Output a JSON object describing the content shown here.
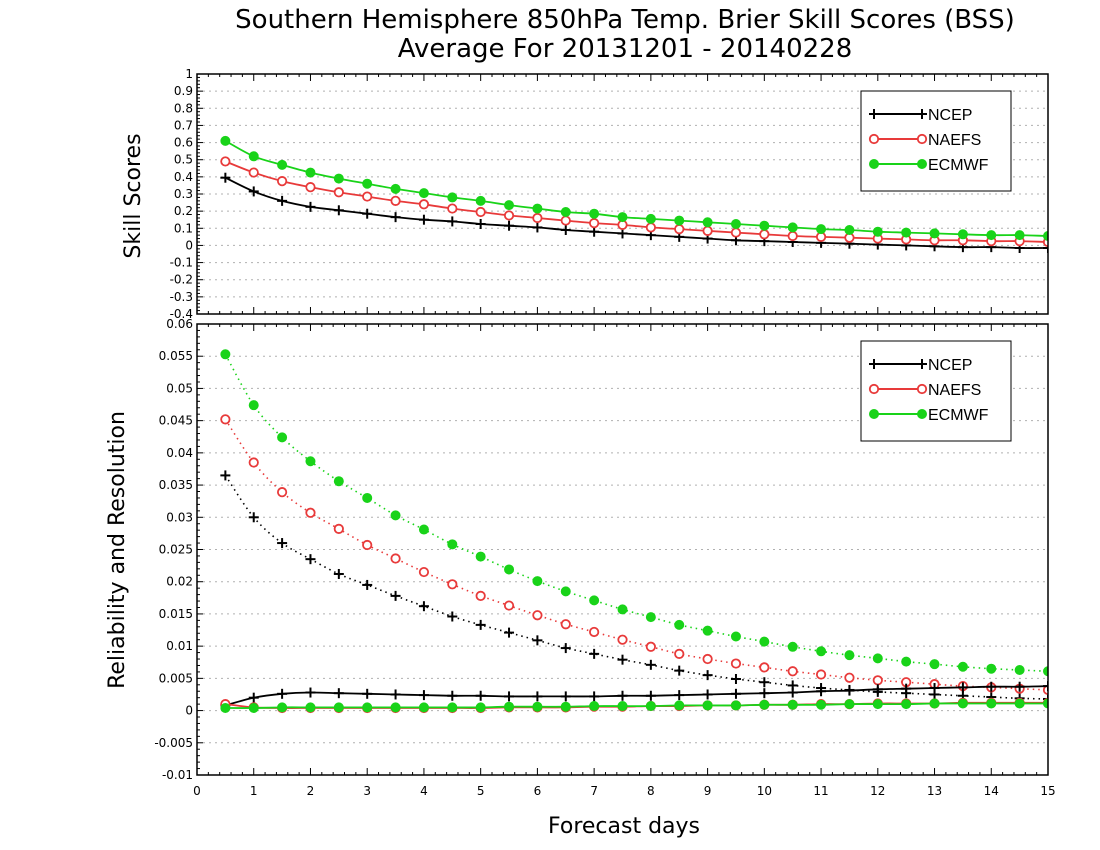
{
  "chart_data": {
    "type": "line",
    "title": "Southern Hemisphere 850hPa Temp. Brier Skill Scores (BSS)",
    "subtitle": "Average For 20131201 - 20140228",
    "xlabel": "Forecast days",
    "xlim": [
      0,
      15
    ],
    "x_ticks": [
      "0",
      "1",
      "2",
      "3",
      "4",
      "5",
      "6",
      "7",
      "8",
      "9",
      "10",
      "11",
      "12",
      "13",
      "14",
      "15"
    ],
    "x": [
      0.5,
      1,
      1.5,
      2,
      2.5,
      3,
      3.5,
      4,
      4.5,
      5,
      5.5,
      6,
      6.5,
      7,
      7.5,
      8,
      8.5,
      9,
      9.5,
      10,
      10.5,
      11,
      11.5,
      12,
      12.5,
      13,
      13.5,
      14,
      14.5,
      15
    ],
    "colors": {
      "NCEP": "#000000",
      "NAEFS": "#e83a3a",
      "ECMWF": "#19d319",
      "grid": "#b0b0b0"
    },
    "panels": [
      {
        "ylabel": "Skill Scores",
        "ylim": [
          -0.4,
          1
        ],
        "y_ticks": [
          "-0.4",
          "-0.3",
          "-0.2",
          "-0.1",
          "0",
          "0.1",
          "0.2",
          "0.3",
          "0.4",
          "0.5",
          "0.6",
          "0.7",
          "0.8",
          "0.9",
          "1"
        ],
        "grid": "horizontal dotted",
        "legend": {
          "position": "top-right",
          "entries": [
            "NCEP",
            "NAEFS",
            "ECMWF"
          ]
        },
        "series": [
          {
            "name": "NCEP",
            "marker": "plus",
            "line": "solid",
            "values": [
              0.395,
              0.315,
              0.26,
              0.225,
              0.205,
              0.185,
              0.165,
              0.15,
              0.14,
              0.125,
              0.115,
              0.105,
              0.09,
              0.08,
              0.07,
              0.06,
              0.05,
              0.04,
              0.03,
              0.025,
              0.02,
              0.015,
              0.01,
              0.005,
              0.0,
              -0.005,
              -0.01,
              -0.01,
              -0.015,
              -0.015
            ]
          },
          {
            "name": "NAEFS",
            "marker": "open-circle",
            "line": "solid",
            "values": [
              0.49,
              0.425,
              0.375,
              0.34,
              0.31,
              0.285,
              0.26,
              0.24,
              0.215,
              0.195,
              0.175,
              0.16,
              0.145,
              0.13,
              0.12,
              0.105,
              0.095,
              0.085,
              0.075,
              0.065,
              0.055,
              0.05,
              0.045,
              0.04,
              0.035,
              0.03,
              0.03,
              0.025,
              0.025,
              0.02
            ]
          },
          {
            "name": "ECMWF",
            "marker": "filled-circle",
            "line": "solid",
            "values": [
              0.61,
              0.52,
              0.47,
              0.425,
              0.39,
              0.36,
              0.33,
              0.305,
              0.28,
              0.26,
              0.235,
              0.215,
              0.195,
              0.185,
              0.165,
              0.155,
              0.145,
              0.135,
              0.125,
              0.115,
              0.105,
              0.095,
              0.09,
              0.08,
              0.075,
              0.07,
              0.065,
              0.06,
              0.06,
              0.055
            ]
          }
        ]
      },
      {
        "ylabel": "Reliability and Resolution",
        "ylim": [
          -0.01,
          0.06
        ],
        "y_ticks": [
          "-0.01",
          "-0.005",
          "0",
          "0.005",
          "0.01",
          "0.015",
          "0.02",
          "0.025",
          "0.03",
          "0.035",
          "0.04",
          "0.045",
          "0.05",
          "0.055",
          "0.06"
        ],
        "grid": "horizontal dotted",
        "legend": {
          "position": "top-right",
          "entries": [
            "NCEP",
            "NAEFS",
            "ECMWF"
          ]
        },
        "series": [
          {
            "name": "NCEP",
            "role": "resolution",
            "marker": "plus",
            "line": "dotted",
            "values": [
              0.0365,
              0.03,
              0.026,
              0.0235,
              0.0212,
              0.0195,
              0.0178,
              0.0162,
              0.0146,
              0.0133,
              0.0121,
              0.0109,
              0.0097,
              0.0088,
              0.0079,
              0.0071,
              0.0062,
              0.0055,
              0.0049,
              0.0044,
              0.0039,
              0.0035,
              0.0032,
              0.0029,
              0.0027,
              0.0025,
              0.0023,
              0.0021,
              0.0019,
              0.0018
            ]
          },
          {
            "name": "NAEFS",
            "role": "resolution",
            "marker": "open-circle",
            "line": "dotted",
            "values": [
              0.0452,
              0.0385,
              0.0339,
              0.0307,
              0.0282,
              0.0257,
              0.0236,
              0.0215,
              0.0196,
              0.0178,
              0.0163,
              0.0148,
              0.0134,
              0.0122,
              0.011,
              0.0099,
              0.0088,
              0.008,
              0.0073,
              0.0067,
              0.0061,
              0.0056,
              0.0051,
              0.0047,
              0.0044,
              0.0041,
              0.0038,
              0.0036,
              0.0034,
              0.0032
            ]
          },
          {
            "name": "ECMWF",
            "role": "resolution",
            "marker": "filled-circle",
            "line": "dotted",
            "values": [
              0.0553,
              0.0474,
              0.0424,
              0.0387,
              0.0356,
              0.033,
              0.0303,
              0.0281,
              0.0258,
              0.0239,
              0.0219,
              0.0201,
              0.0185,
              0.0171,
              0.0157,
              0.0145,
              0.0133,
              0.0124,
              0.0115,
              0.0107,
              0.0099,
              0.0092,
              0.0086,
              0.0081,
              0.0076,
              0.0072,
              0.0068,
              0.0065,
              0.0063,
              0.0061
            ]
          },
          {
            "name": "NCEP",
            "role": "reliability",
            "marker": "plus",
            "line": "solid",
            "values": [
              0.0008,
              0.002,
              0.0026,
              0.0028,
              0.0027,
              0.0026,
              0.0025,
              0.0024,
              0.0023,
              0.0023,
              0.0022,
              0.0022,
              0.0022,
              0.0022,
              0.0023,
              0.0023,
              0.0024,
              0.0025,
              0.0026,
              0.0027,
              0.0028,
              0.003,
              0.0031,
              0.0033,
              0.0034,
              0.0035,
              0.0036,
              0.0037,
              0.0037,
              0.0038
            ]
          },
          {
            "name": "NAEFS",
            "role": "reliability",
            "marker": "open-circle",
            "line": "solid",
            "values": [
              0.001,
              0.0005,
              0.0004,
              0.0004,
              0.0004,
              0.0004,
              0.0004,
              0.0004,
              0.0004,
              0.0004,
              0.0005,
              0.0005,
              0.0005,
              0.0006,
              0.0006,
              0.0007,
              0.0007,
              0.0008,
              0.0008,
              0.0009,
              0.0009,
              0.001,
              0.001,
              0.0011,
              0.0011,
              0.0011,
              0.0012,
              0.0012,
              0.0012,
              0.0012
            ]
          },
          {
            "name": "ECMWF",
            "role": "reliability",
            "marker": "filled-circle",
            "line": "solid",
            "values": [
              0.0004,
              0.0004,
              0.0005,
              0.0005,
              0.0005,
              0.0005,
              0.0005,
              0.0005,
              0.0005,
              0.0005,
              0.0006,
              0.0006,
              0.0006,
              0.0007,
              0.0007,
              0.0007,
              0.0008,
              0.0008,
              0.0008,
              0.0009,
              0.0009,
              0.0009,
              0.001,
              0.001,
              0.001,
              0.0011,
              0.0011,
              0.0011,
              0.0011,
              0.0011
            ]
          }
        ]
      }
    ]
  }
}
